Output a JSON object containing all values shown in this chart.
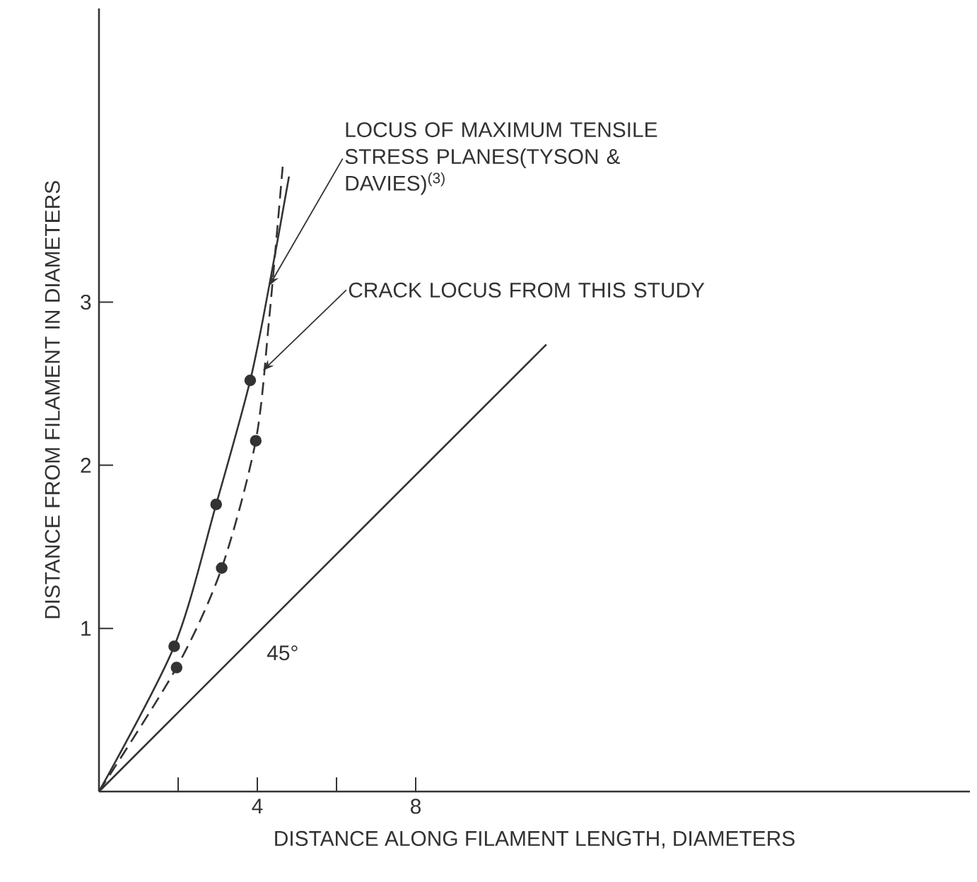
{
  "chart_data": {
    "type": "line",
    "xlabel": "DISTANCE ALONG FILAMENT LENGTH, DIAMETERS",
    "ylabel": "DISTANCE FROM FILAMENT IN DIAMETERS",
    "xlim": [
      0,
      22
    ],
    "ylim": [
      0,
      4.8
    ],
    "xticks": [
      {
        "value": 2,
        "label": null
      },
      4,
      {
        "value": 6,
        "label": null
      },
      8
    ],
    "yticks": [
      1,
      2,
      3
    ],
    "series": [
      {
        "color": "#333333",
        "line_style": "solid",
        "marker": "none",
        "x": [
          0,
          1.9,
          2.96,
          3.82,
          4.3,
          4.8
        ],
        "values": [
          0,
          0.89,
          1.76,
          2.52,
          3.1,
          3.77
        ]
      },
      {
        "color": "#333333",
        "line_style": "dashed",
        "marker": "none",
        "x": [
          0,
          1.96,
          3.1,
          3.96,
          4.3,
          4.64
        ],
        "values": [
          0,
          0.76,
          1.37,
          2.15,
          2.9,
          3.83
        ]
      },
      {
        "type": "scatter",
        "color": "#333333",
        "marker": "circle",
        "x": [
          1.9,
          2.96,
          3.82
        ],
        "values": [
          0.89,
          1.76,
          2.52
        ]
      },
      {
        "type": "scatter",
        "color": "#333333",
        "marker": "circle",
        "x": [
          1.96,
          3.1,
          3.96
        ],
        "values": [
          0.76,
          1.37,
          2.15
        ]
      },
      {
        "color": "#333333",
        "line_style": "solid",
        "marker": "none",
        "x": [
          0,
          11.3
        ],
        "values": [
          0,
          2.74
        ]
      }
    ],
    "annotations": [
      {
        "text": "LOCUS OF MAXIMUM TENSILE STRESS PLANES(TYSON & DAVIES)$^{(3)}$",
        "x": 4.3,
        "y": 3.1
      },
      {
        "text": "CRACK LOCUS FROM THIS STUDY",
        "x": 4.14,
        "y": 2.58
      },
      "45°"
    ]
  }
}
